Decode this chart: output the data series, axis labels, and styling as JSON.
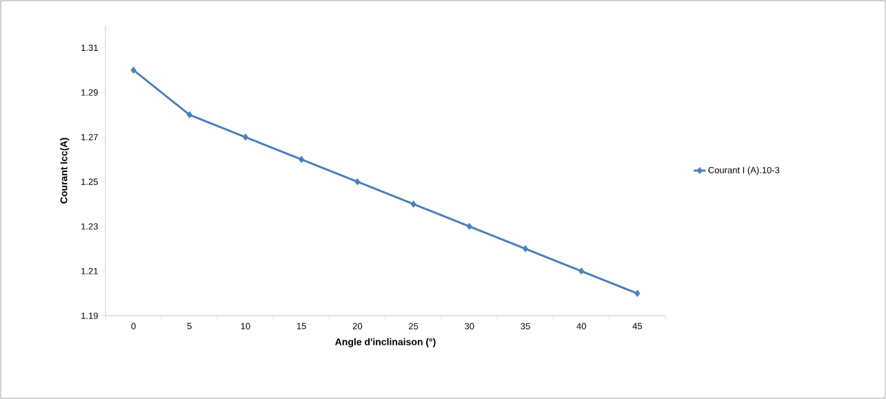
{
  "chart_data": {
    "type": "line",
    "xlabel": "Angle d'inclinaison (°)",
    "ylabel": "Courant Icc(A)",
    "categories": [
      "0",
      "5",
      "10",
      "15",
      "20",
      "25",
      "30",
      "35",
      "40",
      "45"
    ],
    "series": [
      {
        "name": "Courant I (A).10-3",
        "color": "#4a7ebb",
        "values": [
          1.3,
          1.28,
          1.27,
          1.26,
          1.25,
          1.24,
          1.23,
          1.22,
          1.21,
          1.2
        ]
      }
    ],
    "ylim": [
      1.19,
      1.32
    ],
    "yticks": [
      1.19,
      1.21,
      1.23,
      1.25,
      1.27,
      1.29,
      1.31
    ],
    "legend": "right",
    "marker": "diamond",
    "line_style": "solid"
  }
}
